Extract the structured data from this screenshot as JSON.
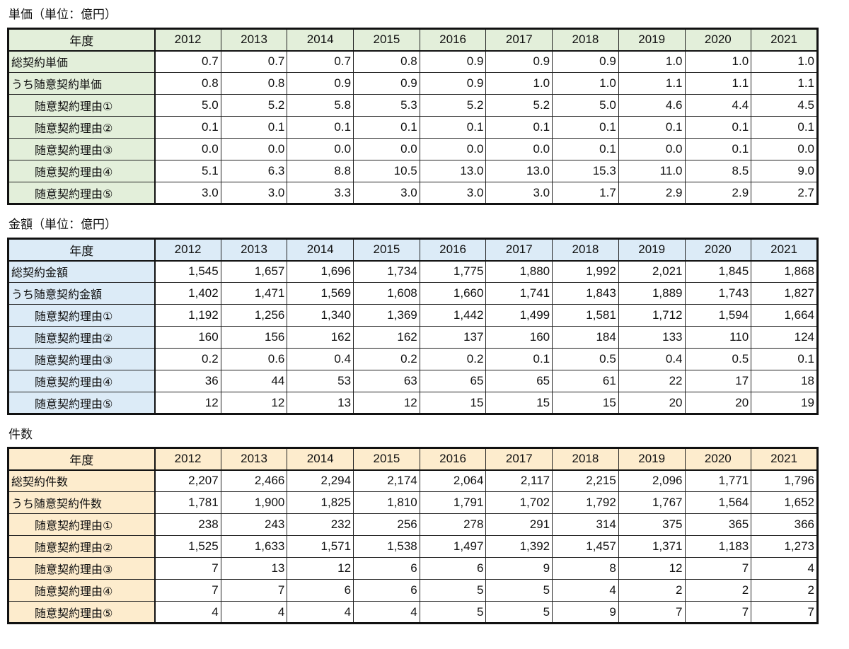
{
  "chart_data": [
    {
      "type": "table",
      "title": "単価（単位：億円）",
      "header_label": "年度",
      "header_color": "#e3efda",
      "columns": [
        "2012",
        "2013",
        "2014",
        "2015",
        "2016",
        "2017",
        "2018",
        "2019",
        "2020",
        "2021"
      ],
      "rows": [
        {
          "label": "総契約単価",
          "indent": false,
          "values": [
            "0.7",
            "0.7",
            "0.7",
            "0.8",
            "0.9",
            "0.9",
            "0.9",
            "1.0",
            "1.0",
            "1.0"
          ]
        },
        {
          "label": "うち随意契約単価",
          "indent": false,
          "values": [
            "0.8",
            "0.8",
            "0.9",
            "0.9",
            "0.9",
            "1.0",
            "1.0",
            "1.1",
            "1.1",
            "1.1"
          ]
        },
        {
          "label": "随意契約理由①",
          "indent": true,
          "values": [
            "5.0",
            "5.2",
            "5.8",
            "5.3",
            "5.2",
            "5.2",
            "5.0",
            "4.6",
            "4.4",
            "4.5"
          ]
        },
        {
          "label": "随意契約理由②",
          "indent": true,
          "values": [
            "0.1",
            "0.1",
            "0.1",
            "0.1",
            "0.1",
            "0.1",
            "0.1",
            "0.1",
            "0.1",
            "0.1"
          ]
        },
        {
          "label": "随意契約理由③",
          "indent": true,
          "values": [
            "0.0",
            "0.0",
            "0.0",
            "0.0",
            "0.0",
            "0.0",
            "0.1",
            "0.0",
            "0.1",
            "0.0"
          ]
        },
        {
          "label": "随意契約理由④",
          "indent": true,
          "values": [
            "5.1",
            "6.3",
            "8.8",
            "10.5",
            "13.0",
            "13.0",
            "15.3",
            "11.0",
            "8.5",
            "9.0"
          ]
        },
        {
          "label": "随意契約理由⑤",
          "indent": true,
          "values": [
            "3.0",
            "3.0",
            "3.3",
            "3.0",
            "3.0",
            "3.0",
            "1.7",
            "2.9",
            "2.9",
            "2.7"
          ]
        }
      ]
    },
    {
      "type": "table",
      "title": "金額（単位：億円）",
      "header_label": "年度",
      "header_color": "#dcebf7",
      "columns": [
        "2012",
        "2013",
        "2014",
        "2015",
        "2016",
        "2017",
        "2018",
        "2019",
        "2020",
        "2021"
      ],
      "rows": [
        {
          "label": "総契約金額",
          "indent": false,
          "values": [
            "1,545",
            "1,657",
            "1,696",
            "1,734",
            "1,775",
            "1,880",
            "1,992",
            "2,021",
            "1,845",
            "1,868"
          ]
        },
        {
          "label": "うち随意契約金額",
          "indent": false,
          "values": [
            "1,402",
            "1,471",
            "1,569",
            "1,608",
            "1,660",
            "1,741",
            "1,843",
            "1,889",
            "1,743",
            "1,827"
          ]
        },
        {
          "label": "随意契約理由①",
          "indent": true,
          "values": [
            "1,192",
            "1,256",
            "1,340",
            "1,369",
            "1,442",
            "1,499",
            "1,581",
            "1,712",
            "1,594",
            "1,664"
          ]
        },
        {
          "label": "随意契約理由②",
          "indent": true,
          "values": [
            "160",
            "156",
            "162",
            "162",
            "137",
            "160",
            "184",
            "133",
            "110",
            "124"
          ]
        },
        {
          "label": "随意契約理由③",
          "indent": true,
          "values": [
            "0.2",
            "0.6",
            "0.4",
            "0.2",
            "0.2",
            "0.1",
            "0.5",
            "0.4",
            "0.5",
            "0.1"
          ]
        },
        {
          "label": "随意契約理由④",
          "indent": true,
          "values": [
            "36",
            "44",
            "53",
            "63",
            "65",
            "65",
            "61",
            "22",
            "17",
            "18"
          ]
        },
        {
          "label": "随意契約理由⑤",
          "indent": true,
          "values": [
            "12",
            "12",
            "13",
            "12",
            "15",
            "15",
            "15",
            "20",
            "20",
            "19"
          ]
        }
      ]
    },
    {
      "type": "table",
      "title": "件数",
      "header_label": "年度",
      "header_color": "#fdeccd",
      "columns": [
        "2012",
        "2013",
        "2014",
        "2015",
        "2016",
        "2017",
        "2018",
        "2019",
        "2020",
        "2021"
      ],
      "rows": [
        {
          "label": "総契約件数",
          "indent": false,
          "values": [
            "2,207",
            "2,466",
            "2,294",
            "2,174",
            "2,064",
            "2,117",
            "2,215",
            "2,096",
            "1,771",
            "1,796"
          ]
        },
        {
          "label": "うち随意契約件数",
          "indent": false,
          "values": [
            "1,781",
            "1,900",
            "1,825",
            "1,810",
            "1,791",
            "1,702",
            "1,792",
            "1,767",
            "1,564",
            "1,652"
          ]
        },
        {
          "label": "随意契約理由①",
          "indent": true,
          "values": [
            "238",
            "243",
            "232",
            "256",
            "278",
            "291",
            "314",
            "375",
            "365",
            "366"
          ]
        },
        {
          "label": "随意契約理由②",
          "indent": true,
          "values": [
            "1,525",
            "1,633",
            "1,571",
            "1,538",
            "1,497",
            "1,392",
            "1,457",
            "1,371",
            "1,183",
            "1,273"
          ]
        },
        {
          "label": "随意契約理由③",
          "indent": true,
          "values": [
            "7",
            "13",
            "12",
            "6",
            "6",
            "9",
            "8",
            "12",
            "7",
            "4"
          ]
        },
        {
          "label": "随意契約理由④",
          "indent": true,
          "values": [
            "7",
            "7",
            "6",
            "6",
            "5",
            "5",
            "4",
            "2",
            "2",
            "2"
          ]
        },
        {
          "label": "随意契約理由⑤",
          "indent": true,
          "values": [
            "4",
            "4",
            "4",
            "4",
            "5",
            "5",
            "9",
            "7",
            "7",
            "7"
          ]
        }
      ]
    }
  ]
}
